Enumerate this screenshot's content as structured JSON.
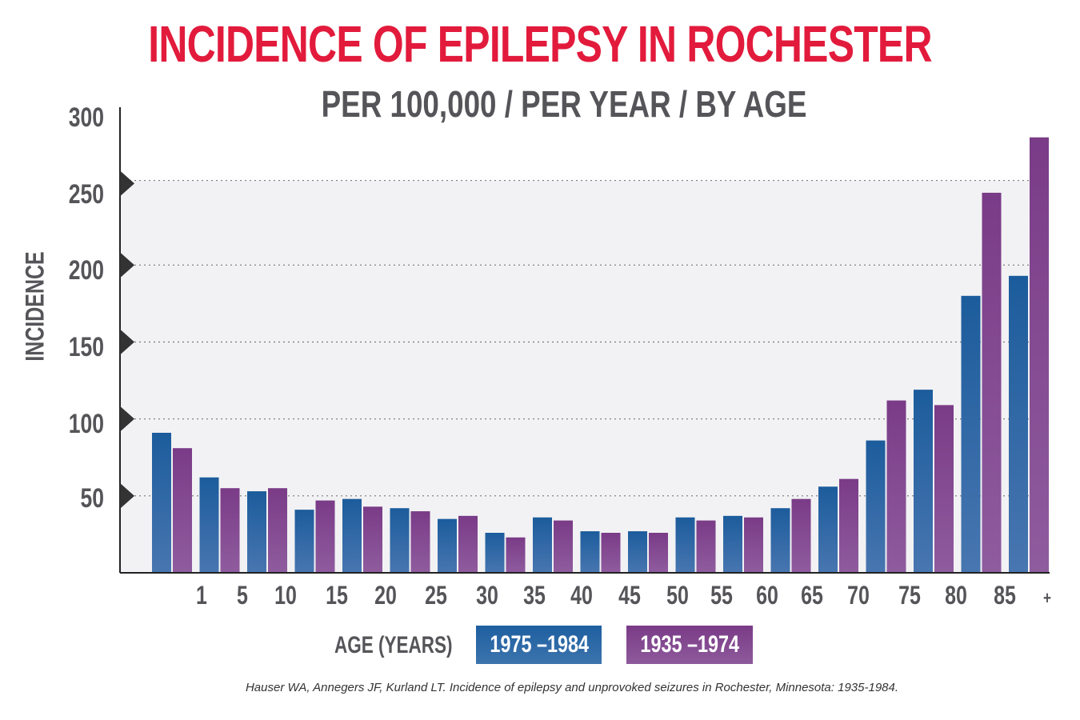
{
  "title": "INCIDENCE OF EPILEPSY IN ROCHESTER",
  "subtitle": "PER 100,000 / PER YEAR / BY AGE",
  "legend": {
    "age_label": "AGE (YEARS)",
    "series1": "1975 –1984",
    "series2": "1935 –1974"
  },
  "citation": "Hauser WA, Annegers JF, Kurland LT. Incidence of epilepsy and unprovoked seizures in Rochester, Minnesota: 1935-1984.",
  "colors": {
    "title": "#e21b3c",
    "text": "#555559",
    "series1": "#1e5fa0",
    "series2": "#7a3b87",
    "plot_band": "#f2f2f4"
  },
  "chart_data": {
    "type": "bar",
    "ylabel": "INCIDENCE",
    "xlabel": "AGE (YEARS)",
    "ylim": [
      0,
      300
    ],
    "yticks": [
      50,
      100,
      150,
      200,
      250,
      300
    ],
    "grid": true,
    "legend_position": "bottom",
    "x_tick_labels": [
      "1",
      "5",
      "10",
      "15",
      "20",
      "25",
      "30",
      "35",
      "40",
      "45",
      "50",
      "55",
      "60",
      "65",
      "70",
      "75",
      "80",
      "85",
      "+"
    ],
    "series": [
      {
        "name": "1975 –1984",
        "values": [
          91,
          62,
          53,
          41,
          48,
          42,
          35,
          26,
          36,
          27,
          27,
          36,
          37,
          42,
          56,
          86,
          119,
          180,
          193
        ]
      },
      {
        "name": "1935 –1974",
        "values": [
          81,
          55,
          55,
          47,
          43,
          40,
          37,
          23,
          34,
          26,
          26,
          34,
          36,
          48,
          61,
          112,
          109,
          247,
          283
        ]
      }
    ]
  }
}
